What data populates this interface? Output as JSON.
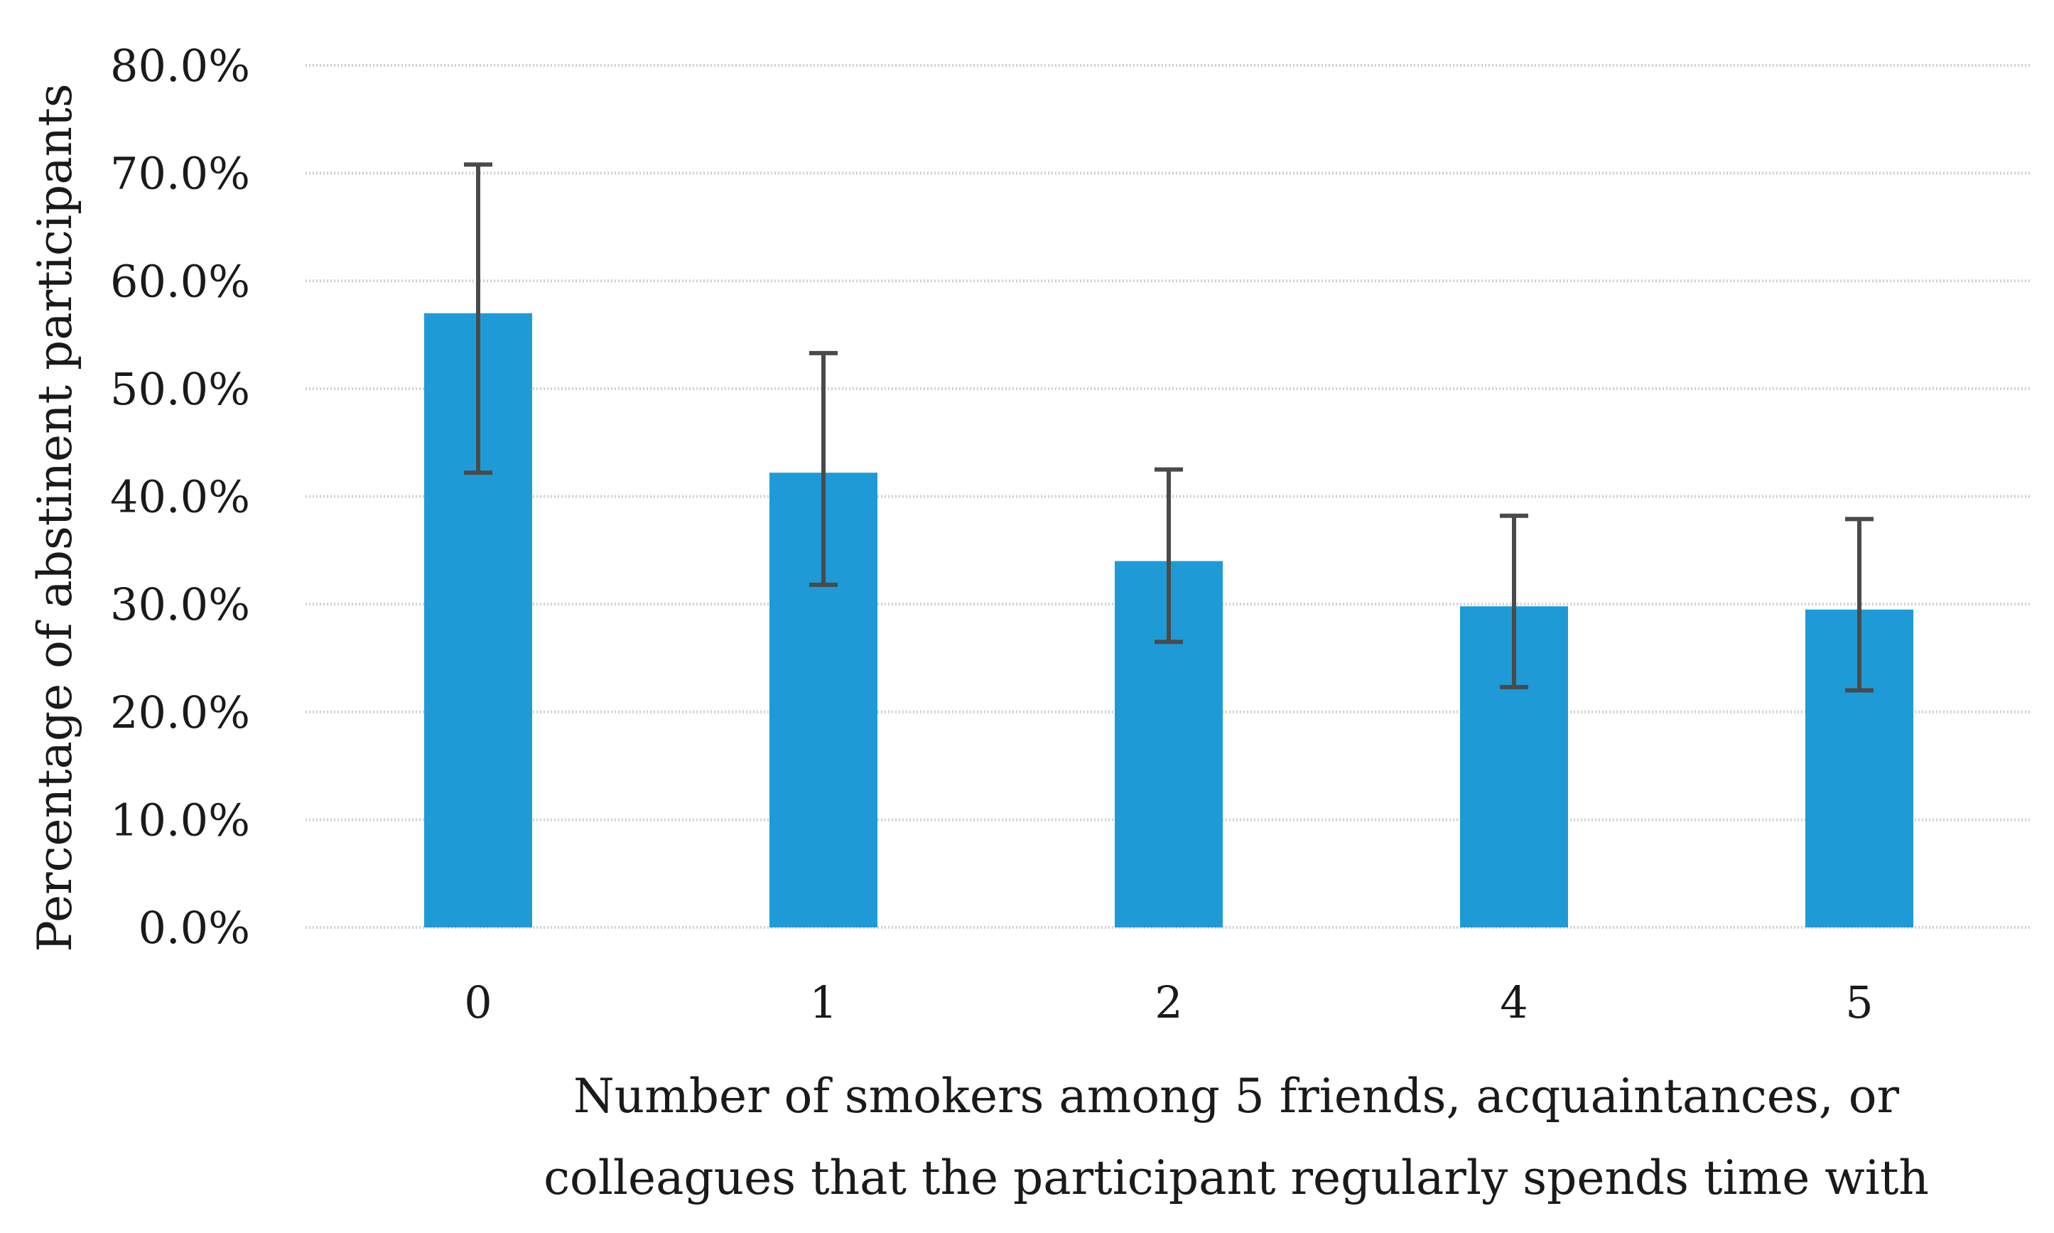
{
  "chart_data": {
    "type": "bar",
    "categories": [
      "0",
      "1",
      "2",
      "4",
      "5"
    ],
    "series": [
      {
        "values": [
          57.0,
          42.2,
          34.0,
          29.8,
          29.5
        ],
        "error_low": [
          42.2,
          31.8,
          26.5,
          22.3,
          22.0
        ],
        "error_high": [
          70.8,
          53.3,
          42.5,
          38.2,
          37.9
        ],
        "color": "#1e9bd7"
      }
    ],
    "xlabel_lines": [
      "Number of smokers among 5 friends, acquaintances, or",
      "colleagues that the participant regularly spends time with"
    ],
    "ylabel": "Percentage of abstinent participants",
    "ylim": [
      0,
      80
    ],
    "yticks": [
      "0.0%",
      "10.0%",
      "20.0%",
      "30.0%",
      "40.0%",
      "50.0%",
      "60.0%",
      "70.0%",
      "80.0%"
    ],
    "grid": true,
    "legend": "none"
  }
}
